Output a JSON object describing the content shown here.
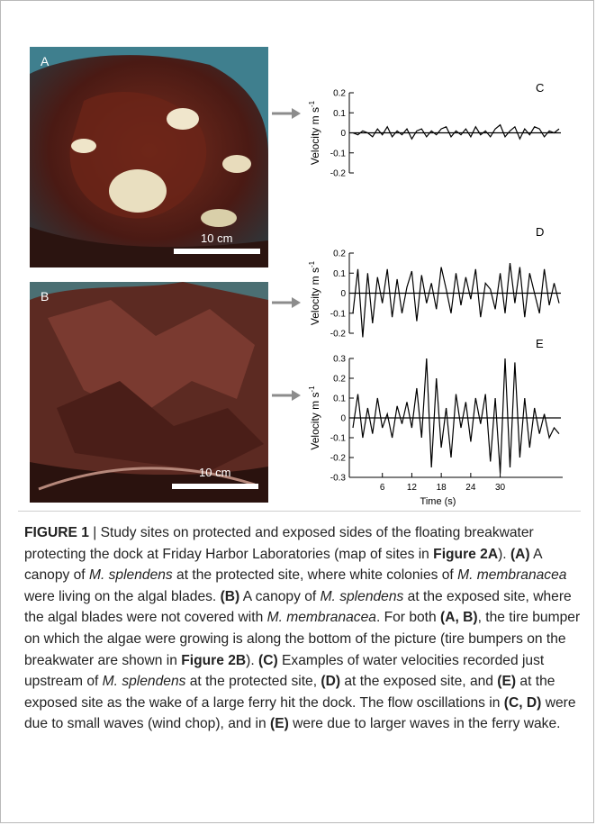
{
  "photos": {
    "a": {
      "label": "A",
      "scale": "10 cm"
    },
    "b": {
      "label": "B",
      "scale": "10 cm"
    }
  },
  "colors": {
    "accent": "#000000",
    "arrow": "#8c8c8c",
    "seaweed": "#5a2218",
    "water": "#3c8aa0"
  },
  "chart_data": [
    {
      "type": "line",
      "panel": "C",
      "ylabel": "Velocity m s-1",
      "yticks": [
        "0.2",
        "0.1",
        "0",
        "-0.1",
        "-0.2"
      ],
      "ylim": [
        -0.2,
        0.2
      ],
      "xlim": [
        0,
        42
      ],
      "series": [
        {
          "x": [
            0,
            1,
            2,
            3,
            4,
            5,
            6,
            7,
            8,
            9,
            10,
            11,
            12,
            13,
            14,
            15,
            16,
            17,
            18,
            19,
            20,
            21,
            22,
            23,
            24,
            25,
            26,
            27,
            28,
            29,
            30,
            31,
            32,
            33,
            34,
            35,
            36,
            37,
            38,
            39,
            40,
            41,
            42
          ],
          "values": [
            0.0,
            -0.01,
            0.01,
            0.0,
            -0.02,
            0.02,
            -0.01,
            0.03,
            -0.02,
            0.01,
            -0.01,
            0.02,
            -0.03,
            0.01,
            0.02,
            -0.02,
            0.01,
            -0.01,
            0.02,
            0.03,
            -0.02,
            0.01,
            -0.01,
            0.02,
            -0.02,
            0.03,
            -0.01,
            0.01,
            -0.02,
            0.02,
            0.04,
            -0.02,
            0.01,
            0.03,
            -0.03,
            0.02,
            -0.01,
            0.03,
            0.02,
            -0.02,
            0.01,
            0.0,
            0.02
          ]
        }
      ]
    },
    {
      "type": "line",
      "panel": "D",
      "ylabel": "Velocity m s-1",
      "yticks": [
        "0.2",
        "0.1",
        "0",
        "-0.1",
        "-0.2"
      ],
      "ylim": [
        -0.2,
        0.2
      ],
      "xlim": [
        0,
        42
      ],
      "series": [
        {
          "x": [
            0,
            1,
            2,
            3,
            4,
            5,
            6,
            7,
            8,
            9,
            10,
            11,
            12,
            13,
            14,
            15,
            16,
            17,
            18,
            19,
            20,
            21,
            22,
            23,
            24,
            25,
            26,
            27,
            28,
            29,
            30,
            31,
            32,
            33,
            34,
            35,
            36,
            37,
            38,
            39,
            40,
            41,
            42
          ],
          "values": [
            -0.1,
            0.12,
            -0.22,
            0.1,
            -0.15,
            0.08,
            -0.05,
            0.12,
            -0.12,
            0.07,
            -0.1,
            0.03,
            0.11,
            -0.14,
            0.09,
            -0.05,
            0.05,
            -0.08,
            0.13,
            0.02,
            -0.1,
            0.1,
            -0.06,
            0.08,
            -0.03,
            0.12,
            -0.12,
            0.05,
            0.02,
            -0.08,
            0.1,
            -0.1,
            0.15,
            -0.05,
            0.13,
            -0.12,
            0.1,
            0.0,
            -0.1,
            0.12,
            -0.06,
            0.05,
            -0.05
          ]
        }
      ]
    },
    {
      "type": "line",
      "panel": "E",
      "ylabel": "Velocity m s-1",
      "yticks": [
        "0.3",
        "0.2",
        "0.1",
        "0",
        "-0.1",
        "-0.2",
        "-0.3"
      ],
      "ylim": [
        -0.3,
        0.3
      ],
      "xlim": [
        0,
        42
      ],
      "xticks": [
        6,
        12,
        18,
        24,
        30
      ],
      "xlabel": "Time (s)",
      "series": [
        {
          "x": [
            0,
            1,
            2,
            3,
            4,
            5,
            6,
            7,
            8,
            9,
            10,
            11,
            12,
            13,
            14,
            15,
            16,
            17,
            18,
            19,
            20,
            21,
            22,
            23,
            24,
            25,
            26,
            27,
            28,
            29,
            30,
            31,
            32,
            33,
            34,
            35,
            36,
            37,
            38,
            39,
            40,
            41,
            42
          ],
          "values": [
            -0.05,
            0.12,
            -0.1,
            0.05,
            -0.08,
            0.1,
            -0.05,
            0.02,
            -0.1,
            0.06,
            -0.03,
            0.08,
            -0.05,
            0.15,
            -0.1,
            0.3,
            -0.25,
            0.2,
            -0.15,
            0.05,
            -0.2,
            0.12,
            -0.05,
            0.08,
            -0.12,
            0.1,
            -0.03,
            0.12,
            -0.22,
            0.1,
            -0.28,
            0.3,
            -0.25,
            0.28,
            -0.2,
            0.1,
            -0.15,
            0.05,
            -0.08,
            0.02,
            -0.1,
            -0.05,
            -0.08
          ]
        }
      ]
    }
  ]
}
